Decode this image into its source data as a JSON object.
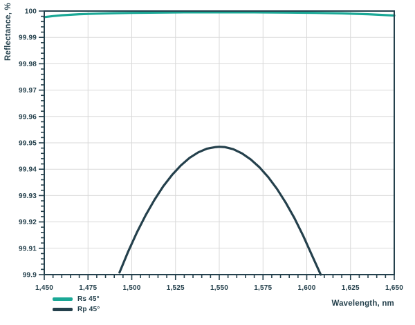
{
  "chart_data": {
    "type": "line",
    "title": "",
    "xlabel": "Wavelength, nm",
    "ylabel": "Reflectance, %",
    "xlim": [
      1450,
      1650
    ],
    "ylim": [
      99.9,
      100
    ],
    "grid": true,
    "x_major_ticks": [
      1450,
      1475,
      1500,
      1525,
      1550,
      1575,
      1600,
      1625,
      1650
    ],
    "x_tick_labels": [
      "1,450",
      "1,475",
      "1,500",
      "1,525",
      "1,550",
      "1,575",
      "1,600",
      "1,625",
      "1,650"
    ],
    "x_minor_step": 5,
    "y_major_ticks": [
      100,
      99.99,
      99.98,
      99.97,
      99.96,
      99.95,
      99.94,
      99.93,
      99.92,
      99.91,
      99.9
    ],
    "y_tick_labels": [
      "100",
      "99.99",
      "99.98",
      "99.97",
      "99.96",
      "99.95",
      "99.94",
      "99.93",
      "99.92",
      "99.91",
      "99.9"
    ],
    "y_minor_step": 0.002,
    "legend_position": "bottom-left",
    "series": [
      {
        "name": "Rs 45°",
        "color": "#1AA896",
        "x": [
          1450,
          1455,
          1460,
          1470,
          1480,
          1490,
          1500,
          1515,
          1530,
          1550,
          1570,
          1590,
          1605,
          1620,
          1635,
          1650
        ],
        "values": [
          99.9977,
          99.9981,
          99.9984,
          99.9988,
          99.999,
          99.9992,
          99.9993,
          99.9994,
          99.9995,
          99.9995,
          99.9995,
          99.9994,
          99.9993,
          99.9991,
          99.9988,
          99.9983
        ]
      },
      {
        "name": "Rp 45°",
        "color": "#24404C",
        "x": [
          1493,
          1498,
          1503,
          1508,
          1513,
          1518,
          1523,
          1528,
          1533,
          1538,
          1543,
          1548,
          1550,
          1553,
          1558,
          1563,
          1568,
          1573,
          1578,
          1583,
          1588,
          1593,
          1598,
          1603,
          1608
        ],
        "values": [
          99.9008,
          99.9088,
          99.9161,
          99.9226,
          99.9284,
          99.9335,
          99.9378,
          99.9414,
          99.9443,
          99.9464,
          99.9478,
          99.9484,
          99.9485,
          99.9484,
          99.9476,
          99.946,
          99.9437,
          99.9407,
          99.937,
          99.9325,
          99.9273,
          99.9214,
          99.9147,
          99.9073,
          99.9
        ]
      }
    ]
  },
  "colors": {
    "axis": "#24404C",
    "grid": "#D9D9D9",
    "text": "#24404C",
    "background": "#FFFFFF"
  }
}
